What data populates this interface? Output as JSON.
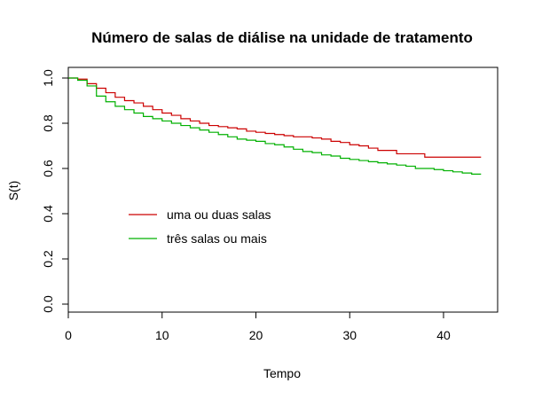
{
  "chart_data": {
    "type": "line",
    "step": true,
    "title": "Número de salas de diálise na unidade de tratamento",
    "xlabel": "Tempo",
    "ylabel": "S(t)",
    "xlim": [
      0,
      45
    ],
    "ylim": [
      0.0,
      1.0
    ],
    "xticks": [
      0,
      10,
      20,
      30,
      40
    ],
    "yticks": [
      0.0,
      0.2,
      0.4,
      0.6,
      0.8,
      1.0
    ],
    "xtick_labels": [
      "0",
      "10",
      "20",
      "30",
      "40"
    ],
    "ytick_labels": [
      "0.0",
      "0.2",
      "0.4",
      "0.6",
      "0.8",
      "1.0"
    ],
    "grid": false,
    "legend_position": "middle-left",
    "series": [
      {
        "name": "uma ou duas salas",
        "color": "#cc0000",
        "x": [
          0,
          1,
          2,
          3,
          4,
          5,
          6,
          7,
          8,
          9,
          10,
          11,
          12,
          13,
          14,
          15,
          16,
          17,
          18,
          19,
          20,
          21,
          22,
          23,
          24,
          25,
          26,
          27,
          28,
          29,
          30,
          31,
          32,
          33,
          34,
          35,
          36,
          37,
          38,
          39,
          40,
          41,
          42,
          43,
          44
        ],
        "y": [
          1.0,
          0.995,
          0.975,
          0.955,
          0.935,
          0.915,
          0.9,
          0.89,
          0.875,
          0.86,
          0.845,
          0.835,
          0.82,
          0.81,
          0.8,
          0.79,
          0.785,
          0.78,
          0.775,
          0.765,
          0.76,
          0.755,
          0.75,
          0.745,
          0.74,
          0.74,
          0.735,
          0.73,
          0.72,
          0.715,
          0.705,
          0.7,
          0.69,
          0.68,
          0.68,
          0.665,
          0.665,
          0.665,
          0.65,
          0.65,
          0.65,
          0.65,
          0.65,
          0.65,
          0.65
        ]
      },
      {
        "name": "três salas ou mais",
        "color": "#00b000",
        "x": [
          0,
          1,
          2,
          3,
          4,
          5,
          6,
          7,
          8,
          9,
          10,
          11,
          12,
          13,
          14,
          15,
          16,
          17,
          18,
          19,
          20,
          21,
          22,
          23,
          24,
          25,
          26,
          27,
          28,
          29,
          30,
          31,
          32,
          33,
          34,
          35,
          36,
          37,
          38,
          39,
          40,
          41,
          42,
          43,
          44
        ],
        "y": [
          1.0,
          0.99,
          0.965,
          0.92,
          0.895,
          0.875,
          0.86,
          0.845,
          0.83,
          0.82,
          0.81,
          0.8,
          0.79,
          0.78,
          0.77,
          0.76,
          0.75,
          0.74,
          0.73,
          0.725,
          0.72,
          0.71,
          0.705,
          0.695,
          0.685,
          0.675,
          0.67,
          0.66,
          0.655,
          0.645,
          0.64,
          0.635,
          0.63,
          0.625,
          0.62,
          0.615,
          0.61,
          0.6,
          0.6,
          0.595,
          0.59,
          0.585,
          0.58,
          0.575,
          0.575
        ]
      }
    ]
  }
}
